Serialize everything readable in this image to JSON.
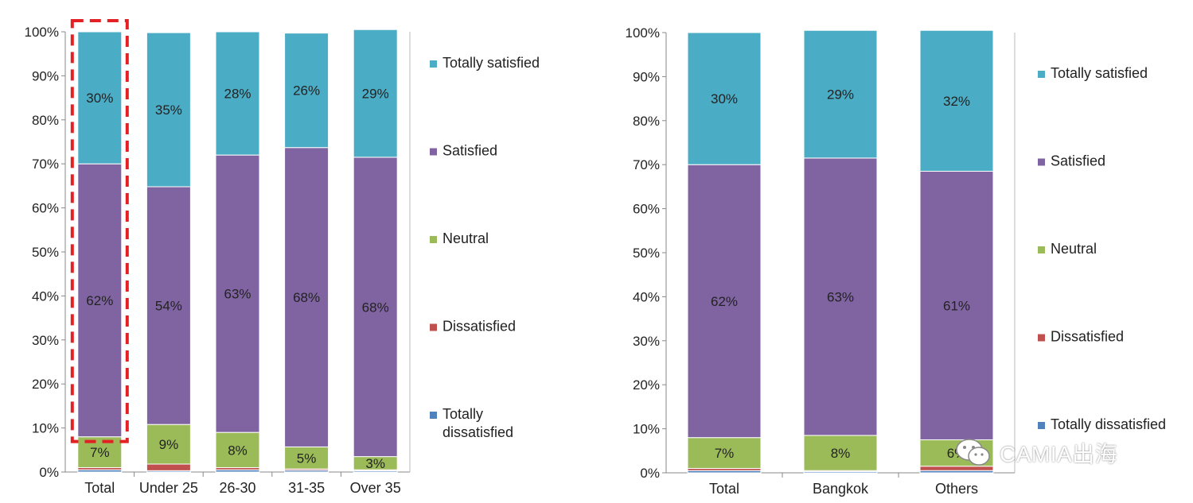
{
  "colors": {
    "totally_satisfied": "#4BACC6",
    "satisfied": "#8064A2",
    "neutral": "#9BBB59",
    "dissatisfied": "#C0504D",
    "totally_dissatisfied": "#4F81BD",
    "highlight": "#E32124"
  },
  "chart_data": [
    {
      "type": "bar",
      "stacked": true,
      "percent": true,
      "categories": [
        "Total",
        "Under 25",
        "26-30",
        "31-35",
        "Over 35"
      ],
      "y_ticks": [
        "0%",
        "10%",
        "20%",
        "30%",
        "40%",
        "50%",
        "60%",
        "70%",
        "80%",
        "90%",
        "100%"
      ],
      "ylim": [
        0,
        100
      ],
      "legend_position": "right",
      "highlighted_category": "Total",
      "series": [
        {
          "name": "Totally dissatisfied",
          "values": [
            0.5,
            0.3,
            0.5,
            0.4,
            0.3
          ],
          "labels": [
            "",
            "",
            "",
            "",
            ""
          ]
        },
        {
          "name": "Dissatisfied",
          "values": [
            0.5,
            1.5,
            0.5,
            0.3,
            0.2
          ],
          "labels": [
            "",
            "",
            "",
            "",
            ""
          ]
        },
        {
          "name": "Neutral",
          "values": [
            7,
            9,
            8,
            5,
            3
          ],
          "labels": [
            "7%",
            "9%",
            "8%",
            "5%",
            "3%"
          ]
        },
        {
          "name": "Satisfied",
          "values": [
            62,
            54,
            63,
            68,
            68
          ],
          "labels": [
            "62%",
            "54%",
            "63%",
            "68%",
            "68%"
          ]
        },
        {
          "name": "Totally satisfied",
          "values": [
            30,
            35,
            28,
            26,
            29
          ],
          "labels": [
            "30%",
            "35%",
            "28%",
            "26%",
            "29%"
          ]
        }
      ],
      "legend": [
        "Totally satisfied",
        "Satisfied",
        "Neutral",
        "Dissatisfied",
        "Totally dissatisfied"
      ],
      "legend_lines": [
        [
          "Totally satisfied"
        ],
        [
          "Satisfied"
        ],
        [
          "Neutral"
        ],
        [
          "Dissatisfied"
        ],
        [
          "Totally",
          "dissatisfied"
        ]
      ]
    },
    {
      "type": "bar",
      "stacked": true,
      "percent": true,
      "categories": [
        "Total",
        "Bangkok",
        "Others"
      ],
      "y_ticks": [
        "0%",
        "10%",
        "20%",
        "30%",
        "40%",
        "50%",
        "60%",
        "70%",
        "80%",
        "90%",
        "100%"
      ],
      "ylim": [
        0,
        100
      ],
      "legend_position": "right",
      "series": [
        {
          "name": "Totally dissatisfied",
          "values": [
            0.5,
            0.3,
            0.5
          ],
          "labels": [
            "",
            "",
            ""
          ]
        },
        {
          "name": "Dissatisfied",
          "values": [
            0.5,
            0.2,
            1.0
          ],
          "labels": [
            "",
            "",
            ""
          ]
        },
        {
          "name": "Neutral",
          "values": [
            7,
            8,
            6
          ],
          "labels": [
            "7%",
            "8%",
            "6%"
          ]
        },
        {
          "name": "Satisfied",
          "values": [
            62,
            63,
            61
          ],
          "labels": [
            "62%",
            "63%",
            "61%"
          ]
        },
        {
          "name": "Totally satisfied",
          "values": [
            30,
            29,
            32
          ],
          "labels": [
            "30%",
            "29%",
            "32%"
          ]
        }
      ],
      "legend": [
        "Totally satisfied",
        "Satisfied",
        "Neutral",
        "Dissatisfied",
        "Totally dissatisfied"
      ],
      "legend_lines": [
        [
          "Totally satisfied"
        ],
        [
          "Satisfied"
        ],
        [
          "Neutral"
        ],
        [
          "Dissatisfied"
        ],
        [
          "Totally dissatisfied"
        ]
      ]
    }
  ],
  "watermark": {
    "icon": "wechat-icon",
    "text": "CAMIA出海"
  }
}
